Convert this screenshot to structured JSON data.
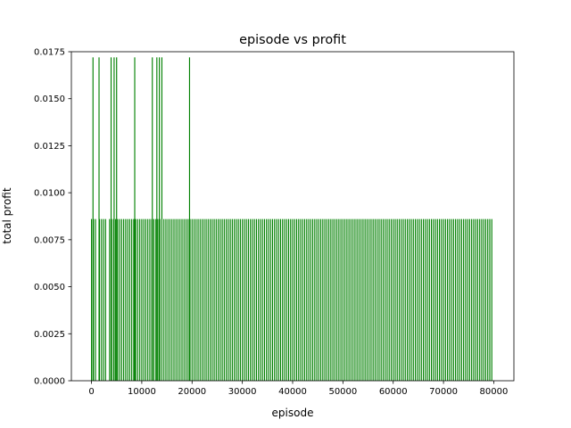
{
  "chart_data": {
    "type": "bar",
    "title": "episode vs profit",
    "xlabel": "episode",
    "ylabel": "total profit",
    "xlim": [
      -4000,
      84000
    ],
    "ylim": [
      0,
      0.0175
    ],
    "xticks": [
      0,
      10000,
      20000,
      30000,
      40000,
      50000,
      60000,
      70000,
      80000
    ],
    "xtick_labels": [
      "0",
      "10000",
      "20000",
      "30000",
      "40000",
      "50000",
      "60000",
      "70000",
      "80000"
    ],
    "yticks": [
      0.0,
      0.0025,
      0.005,
      0.0075,
      0.01,
      0.0125,
      0.015,
      0.0175
    ],
    "ytick_labels": [
      "0.0000",
      "0.0025",
      "0.0050",
      "0.0075",
      "0.0100",
      "0.0125",
      "0.0150",
      "0.0175"
    ],
    "grid": false,
    "legend": "none",
    "bar_color": "#008000",
    "bar_width": 200,
    "series": [
      {
        "base_level": 0.0086,
        "peak_level": 0.0172,
        "x_range": [
          0,
          79800
        ],
        "x_step": 400,
        "peak_x": [
          300,
          1500,
          3900,
          4500,
          5000,
          8600,
          12100,
          13000,
          13500,
          14000,
          19500
        ],
        "gap_x": [
          600,
          900,
          1200,
          2100,
          2500,
          3200,
          4200,
          5400,
          5800,
          6300
        ]
      }
    ]
  }
}
